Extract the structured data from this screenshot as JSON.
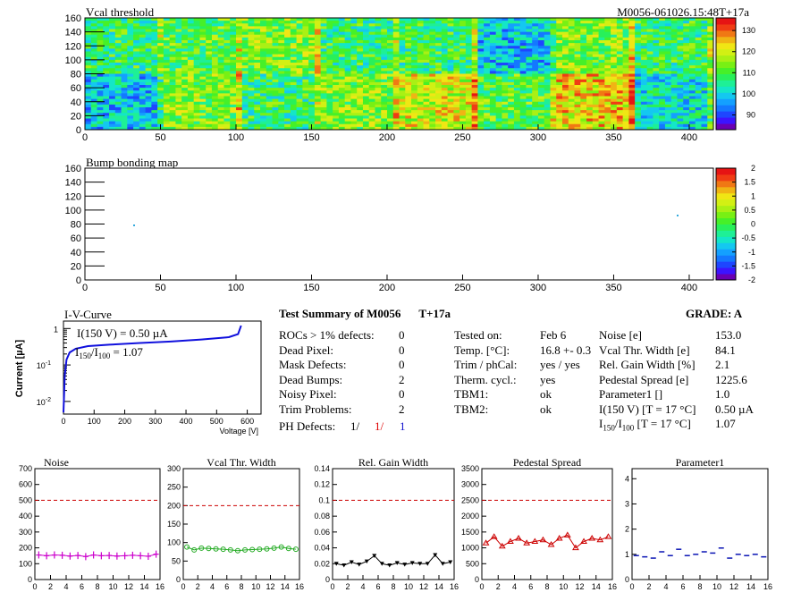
{
  "colors": {
    "red": "#dd0000",
    "blue": "#1010cc",
    "magenta": "#cc00cc",
    "green": "#22aa22",
    "black": "#000000",
    "darkred": "#cc0000",
    "navy": "#0a14b4",
    "ivline": "#1010dd"
  },
  "vcal_map": {
    "title": "Vcal threshold",
    "id_label": "M0056-061026.15:48T+17a",
    "x_ticks": [
      "0",
      "50",
      "100",
      "150",
      "200",
      "250",
      "300",
      "350",
      "400"
    ],
    "y_ticks": [
      "0",
      "20",
      "40",
      "60",
      "80",
      "100",
      "120",
      "140",
      "160"
    ],
    "z_ticks": [
      "90",
      "100",
      "110",
      "120",
      "130"
    ]
  },
  "bump_map": {
    "title": "Bump bonding map",
    "x_ticks": [
      "0",
      "50",
      "100",
      "150",
      "200",
      "250",
      "300",
      "350",
      "400"
    ],
    "y_ticks": [
      "0",
      "20",
      "40",
      "60",
      "80",
      "100",
      "120",
      "140",
      "160"
    ],
    "z_ticks": [
      "-2",
      "-1.5",
      "-1",
      "-0.5",
      "0",
      "0.5",
      "1",
      "1.5",
      "2"
    ]
  },
  "iv_curve": {
    "title": "I-V-Curve",
    "ylabel": "Current [µA]",
    "xlabel": "Voltage [V]",
    "annot1": "I(150 V) = 0.50 µA",
    "annot2_pre": "I",
    "annot2_sub1": "150",
    "annot2_mid": "/I",
    "annot2_sub2": "100",
    "annot2_post": " =  1.07",
    "x_ticks": [
      "0",
      "100",
      "200",
      "300",
      "400",
      "500",
      "600"
    ],
    "y_ticks": [
      "1",
      "10",
      "10"
    ],
    "y_exps": [
      "-1",
      "-2"
    ]
  },
  "summary": {
    "title": "Test Summary of M0056",
    "tag": "T+17a",
    "grade": "GRADE:  A",
    "left_rows": [
      {
        "label": "ROCs > 1% defects:",
        "value": "0"
      },
      {
        "label": "Dead Pixel:",
        "value": "0"
      },
      {
        "label": "Mask Defects:",
        "value": "0"
      },
      {
        "label": "Dead Bumps:",
        "value": "2"
      },
      {
        "label": "Noisy Pixel:",
        "value": "0"
      },
      {
        "label": "Trim Problems:",
        "value": "2"
      }
    ],
    "ph_label": "PH Defects:",
    "ph_vals": [
      "1/",
      "1/",
      "1"
    ],
    "mid_rows": [
      {
        "label": "Tested on:",
        "value": "Feb 6"
      },
      {
        "label": "Temp. [°C]:",
        "value": "16.8 +- 0.3"
      },
      {
        "label": "Trim / phCal:",
        "value": "yes / yes"
      },
      {
        "label": "Therm. cycl.:",
        "value": "yes"
      },
      {
        "label": "TBM1:",
        "value": "ok"
      },
      {
        "label": "TBM2:",
        "value": "ok"
      }
    ],
    "right_rows": [
      {
        "label": "Noise [e]",
        "value": "153.0"
      },
      {
        "label": "Vcal Thr. Width [e]",
        "value": "84.1"
      },
      {
        "label": "Rel. Gain Width [%]",
        "value": "2.1"
      },
      {
        "label": "Pedestal Spread [e]",
        "value": "1225.6"
      },
      {
        "label": "Parameter1 []",
        "value": "1.0"
      },
      {
        "label": "I(150 V) [T = 17 °C]",
        "value": "0.50 µA"
      }
    ],
    "ratio_label_pre": "I",
    "ratio_label_sub1": "150",
    "ratio_label_mid": "/I",
    "ratio_label_sub2": "100",
    "ratio_label_post": "  [T = 17 °C]",
    "ratio_value": "1.07"
  },
  "chart_data": [
    {
      "type": "line",
      "title": "Noise",
      "x": [
        0,
        1,
        2,
        3,
        4,
        5,
        6,
        7,
        8,
        9,
        10,
        11,
        12,
        13,
        14,
        15
      ],
      "values": [
        155,
        150,
        155,
        153,
        148,
        152,
        145,
        155,
        150,
        152,
        148,
        150,
        153,
        150,
        147,
        160
      ],
      "ylim": [
        0,
        700
      ],
      "threshold": 500,
      "yticks": [
        "0",
        "100",
        "200",
        "300",
        "400",
        "500",
        "600",
        "700"
      ],
      "xticks": [
        "0",
        "2",
        "4",
        "6",
        "8",
        "10",
        "12",
        "14",
        "16"
      ],
      "marker": "plus",
      "color": "#cc00cc"
    },
    {
      "type": "line",
      "title": "Vcal Thr. Width",
      "x": [
        0,
        1,
        2,
        3,
        4,
        5,
        6,
        7,
        8,
        9,
        10,
        11,
        12,
        13,
        14,
        15
      ],
      "values": [
        88,
        80,
        85,
        84,
        83,
        82,
        80,
        78,
        80,
        81,
        82,
        83,
        85,
        88,
        84,
        82
      ],
      "ylim": [
        0,
        300
      ],
      "threshold": 200,
      "yticks": [
        "0",
        "50",
        "100",
        "150",
        "200",
        "250",
        "300"
      ],
      "xticks": [
        "0",
        "2",
        "4",
        "6",
        "8",
        "10",
        "12",
        "14",
        "16"
      ],
      "marker": "circle",
      "color": "#22aa22"
    },
    {
      "type": "line",
      "title": "Rel. Gain Width",
      "x": [
        0,
        1,
        2,
        3,
        4,
        5,
        6,
        7,
        8,
        9,
        10,
        11,
        12,
        13,
        14,
        15
      ],
      "values": [
        0.02,
        0.018,
        0.022,
        0.019,
        0.023,
        0.03,
        0.02,
        0.018,
        0.021,
        0.019,
        0.021,
        0.02,
        0.02,
        0.031,
        0.02,
        0.022
      ],
      "ylim": [
        0,
        0.14
      ],
      "threshold": 0.1,
      "yticks": [
        "0",
        "0.02",
        "0.04",
        "0.06",
        "0.08",
        "0.1",
        "0.12",
        "0.14"
      ],
      "xticks": [
        "0",
        "2",
        "4",
        "6",
        "8",
        "10",
        "12",
        "14",
        "16"
      ],
      "marker": "triangle-down",
      "color": "#000000"
    },
    {
      "type": "line",
      "title": "Pedestal Spread",
      "x": [
        0,
        1,
        2,
        3,
        4,
        5,
        6,
        7,
        8,
        9,
        10,
        11,
        12,
        13,
        14,
        15
      ],
      "values": [
        1150,
        1350,
        1050,
        1200,
        1300,
        1150,
        1200,
        1250,
        1100,
        1300,
        1400,
        1000,
        1200,
        1300,
        1250,
        1350
      ],
      "ylim": [
        0,
        3500
      ],
      "threshold": 2500,
      "yticks": [
        "0",
        "500",
        "1000",
        "1500",
        "2000",
        "2500",
        "3000",
        "3500"
      ],
      "xticks": [
        "0",
        "2",
        "4",
        "6",
        "8",
        "10",
        "12",
        "14",
        "16"
      ],
      "marker": "triangle-up",
      "color": "#cc0000"
    },
    {
      "type": "scatter",
      "title": "Parameter1",
      "x": [
        0,
        1,
        2,
        3,
        4,
        5,
        6,
        7,
        8,
        9,
        10,
        11,
        12,
        13,
        14,
        15
      ],
      "values": [
        0.95,
        0.9,
        0.85,
        1.1,
        0.95,
        1.2,
        0.95,
        1.0,
        1.1,
        1.05,
        1.25,
        0.85,
        1.0,
        0.95,
        1.0,
        0.9
      ],
      "ylim": [
        0,
        4.4
      ],
      "yticks": [
        "0",
        "1",
        "2",
        "3",
        "4"
      ],
      "xticks": [
        "0",
        "2",
        "4",
        "6",
        "8",
        "10",
        "12",
        "14",
        "16"
      ],
      "marker": "dash",
      "color": "#0a14b4"
    }
  ]
}
